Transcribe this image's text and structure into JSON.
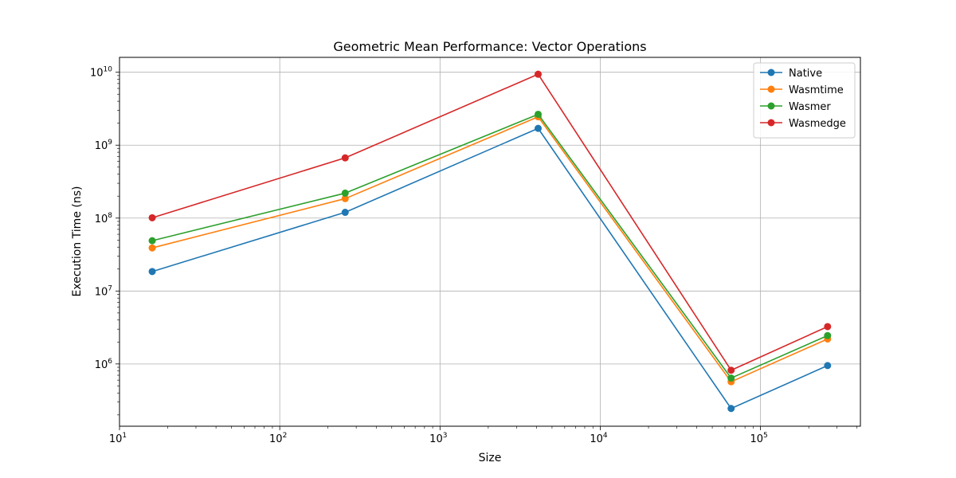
{
  "chart_data": {
    "type": "line",
    "title": "Geometric Mean Performance: Vector Operations",
    "xlabel": "Size",
    "ylabel": "Execution Time (ns)",
    "xscale": "log",
    "yscale": "log",
    "xlim": [
      10,
      420000
    ],
    "ylim": [
      140000,
      16000000000
    ],
    "grid": true,
    "legend_position": "top-right",
    "x": [
      16,
      256,
      4096,
      65536,
      262144
    ],
    "series": [
      {
        "name": "Native",
        "color": "#1f77b4",
        "values": [
          18500000,
          120000000,
          1700000000,
          245000,
          950000
        ]
      },
      {
        "name": "Wasmtime",
        "color": "#ff7f0e",
        "values": [
          39000000,
          185000000,
          2450000000,
          570000,
          2200000
        ]
      },
      {
        "name": "Wasmer",
        "color": "#2ca02c",
        "values": [
          49000000,
          220000000,
          2650000000,
          640000,
          2450000
        ]
      },
      {
        "name": "Wasmedge",
        "color": "#d62728",
        "values": [
          101000000,
          670000000,
          9400000000,
          820000,
          3250000
        ]
      }
    ],
    "x_ticks": [
      {
        "value": 10,
        "base": "10",
        "exp": "1"
      },
      {
        "value": 100,
        "base": "10",
        "exp": "2"
      },
      {
        "value": 1000,
        "base": "10",
        "exp": "3"
      },
      {
        "value": 10000,
        "base": "10",
        "exp": "4"
      },
      {
        "value": 100000,
        "base": "10",
        "exp": "5"
      }
    ],
    "y_ticks": [
      {
        "value": 1000000,
        "base": "10",
        "exp": "6"
      },
      {
        "value": 10000000,
        "base": "10",
        "exp": "7"
      },
      {
        "value": 100000000,
        "base": "10",
        "exp": "8"
      },
      {
        "value": 1000000000,
        "base": "10",
        "exp": "9"
      },
      {
        "value": 10000000000,
        "base": "10",
        "exp": "10"
      }
    ]
  }
}
